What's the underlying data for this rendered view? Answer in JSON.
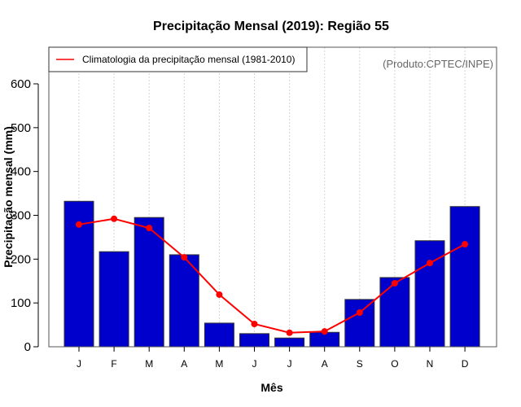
{
  "chart_data": {
    "type": "bar",
    "title": "Precipitação Mensal (2019): Região 55",
    "xlabel": "Mês",
    "ylabel": "Precipitação mensal (mm)",
    "categories": [
      "J",
      "F",
      "M",
      "A",
      "M",
      "J",
      "J",
      "A",
      "S",
      "O",
      "N",
      "D"
    ],
    "ylim": [
      0,
      680
    ],
    "yticks": [
      0,
      100,
      200,
      300,
      400,
      500,
      600
    ],
    "grid": "vertical dotted",
    "series": [
      {
        "name": "Precipitação mensal 2019",
        "type": "bar",
        "color": "#0000CD",
        "values": [
          332,
          217,
          295,
          210,
          54,
          30,
          20,
          33,
          108,
          158,
          242,
          320
        ]
      },
      {
        "name": "Climatologia da precipitação mensal (1981-2010)",
        "type": "line",
        "color": "#FF0000",
        "values": [
          279,
          292,
          271,
          204,
          119,
          52,
          32,
          35,
          78,
          145,
          191,
          234
        ]
      }
    ],
    "legend": {
      "position": "top-left",
      "entries": [
        "Climatologia da precipitação mensal (1981-2010)"
      ]
    },
    "annotation": "(Produto:CPTEC/INPE)"
  }
}
